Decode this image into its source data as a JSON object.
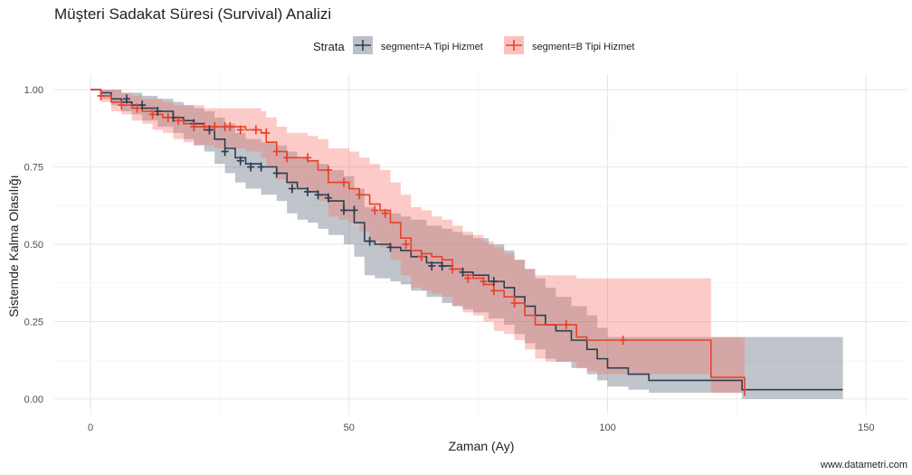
{
  "chart_data": {
    "type": "line",
    "subtype": "kaplan-meier step curves with confidence bands and censor marks",
    "title": "Müşteri Sadakat Süresi (Survival) Analizi",
    "xlabel": "Zaman (Ay)",
    "ylabel": "Sistemde Kalma Olasılığı",
    "caption": "www.datametri.com",
    "xlim": [
      -7,
      158
    ],
    "ylim": [
      -0.05,
      1.05
    ],
    "xticks": [
      0,
      50,
      100,
      150
    ],
    "xtick_labels": [
      "0",
      "50",
      "100",
      "150"
    ],
    "yticks": [
      0,
      0.25,
      0.5,
      0.75,
      1.0
    ],
    "ytick_labels": [
      "0.00",
      "0.25",
      "0.50",
      "0.75",
      "1.00"
    ],
    "grid": true,
    "legend": {
      "title": "Strata",
      "position": "top"
    },
    "series": [
      {
        "name": "segment=A Tipi Hizmet",
        "color": "#2c3e50",
        "band_color": "#2c3e50",
        "x": [
          0,
          2,
          4,
          6,
          8,
          10,
          13,
          16,
          18,
          20,
          22,
          24,
          26,
          28,
          30,
          33,
          36,
          38,
          40,
          42,
          44,
          46,
          49,
          51,
          53,
          55,
          58,
          60,
          62,
          65,
          68,
          70,
          72,
          74,
          77,
          80,
          82,
          84,
          86,
          88,
          90,
          93,
          96,
          98,
          100,
          104,
          108,
          112,
          116,
          120,
          123,
          126,
          130,
          135,
          145.5
        ],
        "y": [
          1.0,
          0.99,
          0.97,
          0.96,
          0.95,
          0.94,
          0.93,
          0.91,
          0.9,
          0.89,
          0.87,
          0.84,
          0.81,
          0.78,
          0.76,
          0.75,
          0.73,
          0.7,
          0.68,
          0.67,
          0.66,
          0.64,
          0.61,
          0.57,
          0.51,
          0.5,
          0.49,
          0.48,
          0.46,
          0.44,
          0.43,
          0.42,
          0.41,
          0.4,
          0.38,
          0.36,
          0.33,
          0.3,
          0.27,
          0.24,
          0.22,
          0.19,
          0.16,
          0.13,
          0.1,
          0.08,
          0.06,
          0.06,
          0.06,
          0.06,
          0.06,
          0.03,
          0.03,
          0.03,
          0.03
        ],
        "lower": [
          1.0,
          0.97,
          0.95,
          0.93,
          0.92,
          0.9,
          0.88,
          0.86,
          0.84,
          0.82,
          0.8,
          0.76,
          0.73,
          0.7,
          0.68,
          0.66,
          0.64,
          0.6,
          0.58,
          0.57,
          0.55,
          0.53,
          0.5,
          0.46,
          0.4,
          0.39,
          0.38,
          0.37,
          0.35,
          0.33,
          0.31,
          0.3,
          0.29,
          0.28,
          0.26,
          0.24,
          0.21,
          0.18,
          0.16,
          0.13,
          0.12,
          0.1,
          0.08,
          0.06,
          0.04,
          0.03,
          0.02,
          0.02,
          0.02,
          0.02,
          0.02,
          0.0,
          0.0,
          0.0,
          0.0
        ],
        "upper": [
          1.0,
          1.0,
          1.0,
          0.99,
          0.99,
          0.98,
          0.97,
          0.96,
          0.95,
          0.94,
          0.93,
          0.91,
          0.89,
          0.86,
          0.84,
          0.83,
          0.82,
          0.8,
          0.78,
          0.77,
          0.76,
          0.74,
          0.72,
          0.68,
          0.62,
          0.61,
          0.6,
          0.59,
          0.58,
          0.56,
          0.55,
          0.54,
          0.53,
          0.52,
          0.5,
          0.48,
          0.45,
          0.42,
          0.39,
          0.36,
          0.33,
          0.3,
          0.27,
          0.23,
          0.2,
          0.2,
          0.2,
          0.2,
          0.2,
          0.2,
          0.2,
          0.2,
          0.2,
          0.2,
          0.2
        ],
        "censor_x": [
          7,
          10,
          13,
          16,
          20,
          23,
          26,
          29,
          31,
          33,
          36,
          39,
          42,
          44,
          46,
          49,
          51,
          54,
          58,
          66,
          68,
          72,
          78
        ],
        "censor_y": [
          0.97,
          0.95,
          0.93,
          0.91,
          0.89,
          0.87,
          0.8,
          0.77,
          0.75,
          0.75,
          0.73,
          0.68,
          0.67,
          0.66,
          0.65,
          0.61,
          0.61,
          0.51,
          0.49,
          0.43,
          0.43,
          0.41,
          0.38
        ]
      },
      {
        "name": "segment=B Tipi Hizmet",
        "color": "#e8412c",
        "band_color": "#f8766d",
        "x": [
          0,
          2,
          4,
          6,
          8,
          10,
          12,
          14,
          16,
          18,
          20,
          22,
          24,
          27,
          30,
          33,
          34,
          36,
          38,
          40,
          42,
          44,
          46,
          48,
          50,
          52,
          54,
          56,
          58,
          60,
          62,
          64,
          66,
          68,
          70,
          72,
          74,
          76,
          78,
          80,
          82,
          84,
          86,
          88,
          90,
          92,
          94,
          96,
          98,
          100,
          104,
          108,
          112,
          116,
          120,
          123,
          126.5
        ],
        "y": [
          1.0,
          0.98,
          0.96,
          0.95,
          0.94,
          0.93,
          0.92,
          0.91,
          0.9,
          0.89,
          0.88,
          0.88,
          0.88,
          0.88,
          0.87,
          0.86,
          0.83,
          0.8,
          0.78,
          0.78,
          0.77,
          0.74,
          0.7,
          0.7,
          0.68,
          0.66,
          0.63,
          0.61,
          0.57,
          0.52,
          0.48,
          0.47,
          0.46,
          0.45,
          0.42,
          0.4,
          0.39,
          0.37,
          0.35,
          0.33,
          0.31,
          0.27,
          0.24,
          0.24,
          0.24,
          0.24,
          0.2,
          0.19,
          0.19,
          0.19,
          0.19,
          0.19,
          0.19,
          0.19,
          0.07,
          0.07,
          0.01
        ],
        "lower": [
          1.0,
          0.96,
          0.93,
          0.92,
          0.9,
          0.89,
          0.87,
          0.86,
          0.84,
          0.83,
          0.82,
          0.82,
          0.81,
          0.81,
          0.8,
          0.78,
          0.75,
          0.71,
          0.69,
          0.68,
          0.67,
          0.64,
          0.59,
          0.58,
          0.57,
          0.54,
          0.51,
          0.49,
          0.45,
          0.4,
          0.36,
          0.35,
          0.34,
          0.33,
          0.3,
          0.28,
          0.27,
          0.25,
          0.22,
          0.21,
          0.19,
          0.16,
          0.13,
          0.12,
          0.12,
          0.12,
          0.1,
          0.09,
          0.08,
          0.08,
          0.08,
          0.08,
          0.08,
          0.08,
          0.02,
          0.02,
          0.0
        ],
        "upper": [
          1.0,
          1.0,
          1.0,
          0.99,
          0.98,
          0.97,
          0.97,
          0.96,
          0.95,
          0.95,
          0.95,
          0.94,
          0.94,
          0.94,
          0.94,
          0.93,
          0.91,
          0.88,
          0.86,
          0.86,
          0.85,
          0.84,
          0.81,
          0.81,
          0.8,
          0.78,
          0.76,
          0.74,
          0.7,
          0.66,
          0.62,
          0.61,
          0.59,
          0.58,
          0.56,
          0.54,
          0.53,
          0.51,
          0.49,
          0.47,
          0.45,
          0.42,
          0.4,
          0.4,
          0.4,
          0.4,
          0.39,
          0.39,
          0.39,
          0.39,
          0.39,
          0.39,
          0.39,
          0.39,
          0.2,
          0.2,
          0.1
        ],
        "censor_x": [
          2,
          6,
          9,
          12,
          15,
          17,
          20,
          22,
          24,
          26,
          27,
          29,
          32,
          34,
          36,
          38,
          42,
          46,
          49,
          52,
          55,
          57,
          61,
          64,
          70,
          73,
          76,
          78,
          82,
          92,
          103
        ],
        "censor_y": [
          0.98,
          0.95,
          0.94,
          0.92,
          0.91,
          0.9,
          0.88,
          0.88,
          0.88,
          0.88,
          0.88,
          0.87,
          0.87,
          0.86,
          0.8,
          0.78,
          0.78,
          0.74,
          0.7,
          0.66,
          0.61,
          0.6,
          0.5,
          0.46,
          0.42,
          0.39,
          0.38,
          0.35,
          0.31,
          0.24,
          0.19
        ]
      }
    ]
  }
}
